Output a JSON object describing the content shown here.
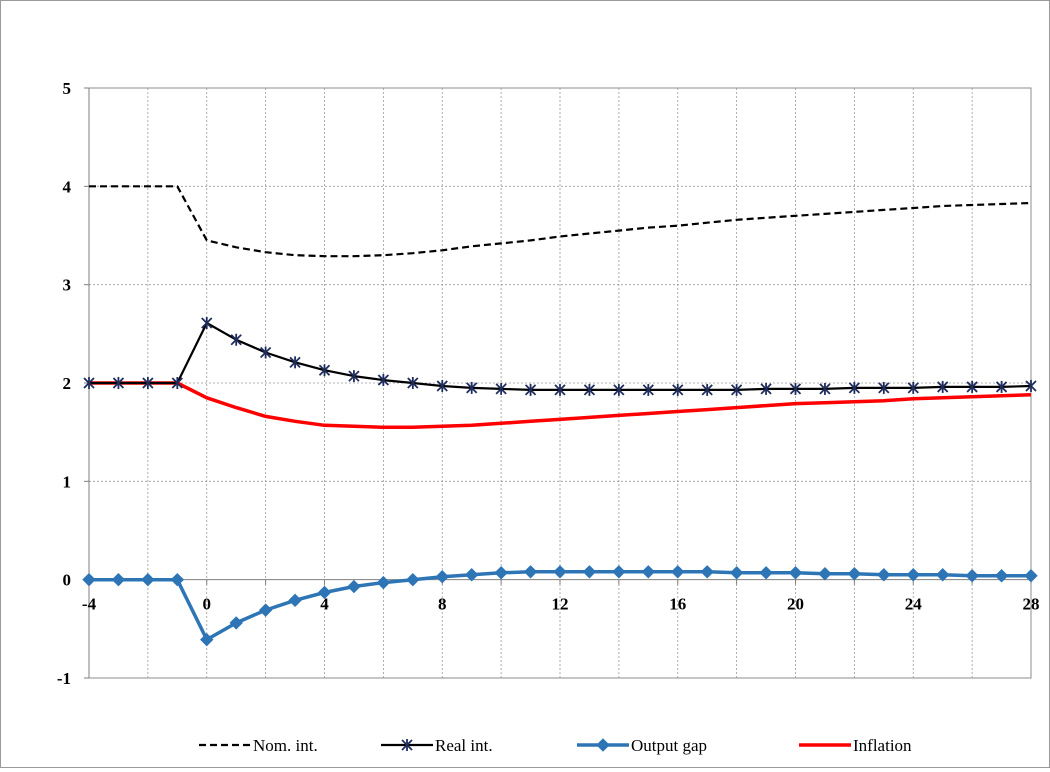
{
  "chart_data": {
    "type": "line",
    "x": [
      -4,
      -3,
      -2,
      -1,
      0,
      1,
      2,
      3,
      4,
      5,
      6,
      7,
      8,
      9,
      10,
      11,
      12,
      13,
      14,
      15,
      16,
      17,
      18,
      19,
      20,
      21,
      22,
      23,
      24,
      25,
      26,
      27,
      28
    ],
    "xlim": [
      -4,
      28
    ],
    "ylim": [
      -1,
      5
    ],
    "xticks": [
      -4,
      0,
      4,
      8,
      12,
      16,
      20,
      24,
      28
    ],
    "yticks": [
      -1,
      0,
      1,
      2,
      3,
      4,
      5
    ],
    "x_tick_labels": [
      "-4",
      "0",
      "4",
      "8",
      "12",
      "16",
      "20",
      "24",
      "28"
    ],
    "y_tick_labels": [
      "-1",
      "0",
      "1",
      "2",
      "3",
      "4",
      "5"
    ],
    "title": "",
    "xlabel": "",
    "ylabel": "",
    "grid": true,
    "grid_style": "dashed",
    "legend_position": "bottom",
    "series": [
      {
        "name": "Nom. int.",
        "color": "#000000",
        "style": "dashed",
        "marker": "none",
        "values": [
          4.0,
          4.0,
          4.0,
          4.0,
          3.45,
          3.38,
          3.33,
          3.3,
          3.29,
          3.29,
          3.3,
          3.32,
          3.35,
          3.39,
          3.42,
          3.45,
          3.49,
          3.52,
          3.55,
          3.58,
          3.6,
          3.63,
          3.66,
          3.68,
          3.7,
          3.72,
          3.74,
          3.76,
          3.78,
          3.8,
          3.81,
          3.82,
          3.83
        ]
      },
      {
        "name": "Real int.",
        "color": "#000000",
        "style": "solid",
        "marker": "asterisk",
        "marker_color": "#1f2d5c",
        "values": [
          2.0,
          2.0,
          2.0,
          2.0,
          2.61,
          2.44,
          2.31,
          2.21,
          2.13,
          2.07,
          2.03,
          2.0,
          1.97,
          1.95,
          1.94,
          1.93,
          1.93,
          1.93,
          1.93,
          1.93,
          1.93,
          1.93,
          1.93,
          1.94,
          1.94,
          1.94,
          1.95,
          1.95,
          1.95,
          1.96,
          1.96,
          1.96,
          1.97
        ]
      },
      {
        "name": "Output gap",
        "color": "#2e75b6",
        "style": "solid",
        "marker": "diamond",
        "marker_color": "#2e75b6",
        "values": [
          0.0,
          0.0,
          0.0,
          0.0,
          -0.61,
          -0.44,
          -0.31,
          -0.21,
          -0.13,
          -0.07,
          -0.03,
          0.0,
          0.03,
          0.05,
          0.07,
          0.08,
          0.08,
          0.08,
          0.08,
          0.08,
          0.08,
          0.08,
          0.07,
          0.07,
          0.07,
          0.06,
          0.06,
          0.05,
          0.05,
          0.05,
          0.04,
          0.04,
          0.04
        ]
      },
      {
        "name": "Inflation",
        "color": "#ff0000",
        "style": "solid",
        "marker": "none",
        "values": [
          2.0,
          2.0,
          2.0,
          2.0,
          1.85,
          1.75,
          1.66,
          1.61,
          1.57,
          1.56,
          1.55,
          1.55,
          1.56,
          1.57,
          1.59,
          1.61,
          1.63,
          1.65,
          1.67,
          1.69,
          1.71,
          1.73,
          1.75,
          1.77,
          1.79,
          1.8,
          1.81,
          1.82,
          1.84,
          1.85,
          1.86,
          1.87,
          1.88
        ]
      }
    ]
  }
}
